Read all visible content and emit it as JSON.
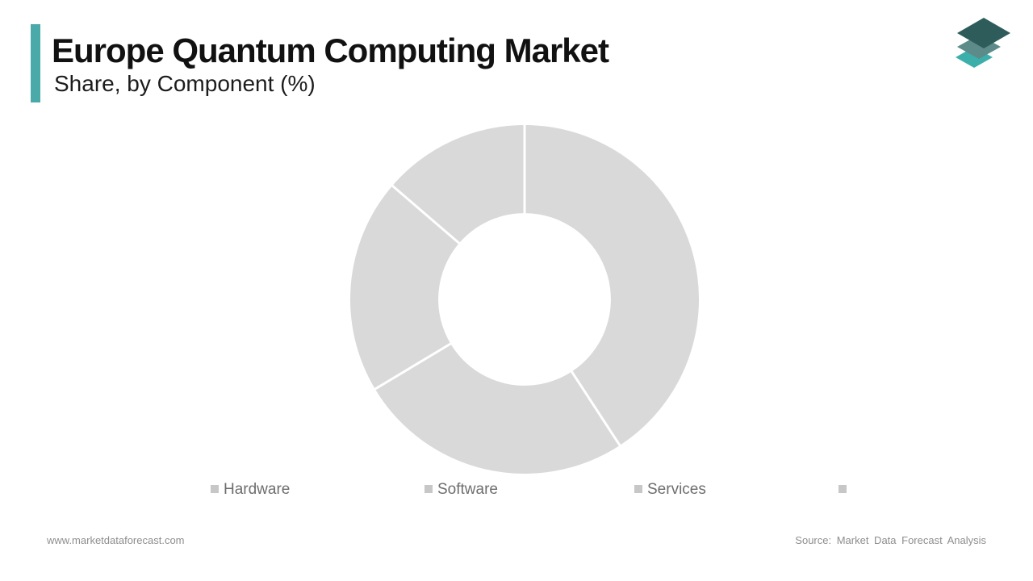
{
  "header": {
    "title": "Europe Quantum Computing Market",
    "subtitle": "Share, by Component (%)",
    "accent_color": "#4AA9A9",
    "title_color": "#111111"
  },
  "logo": {
    "name": "market-data-forecast-layers-logo",
    "layer_colors": [
      "#2E5C5B",
      "#5C8B89",
      "#3DAFAB"
    ]
  },
  "chart_data": {
    "type": "pie",
    "subtype": "donut",
    "title": "Europe Quantum Computing Market Share, by Component (%)",
    "labels": [
      "Hardware",
      "Software",
      "Services",
      ""
    ],
    "values": [
      40.8,
      25.6,
      19.9,
      13.7
    ],
    "unit": "%",
    "values_estimated_from_arc_angles": true,
    "start_angle_deg": 0,
    "direction": "clockwise",
    "inner_radius_ratio": 0.495,
    "segment_color": "#D9D9D9",
    "divider_color": "#FFFFFF",
    "data_labels_visible": false,
    "legend_position": "bottom"
  },
  "legend": {
    "marker_color": "#C7C7C7",
    "text_color": "#6E6E6E"
  },
  "footer": {
    "website": "www.marketdataforecast.com",
    "source": "Source: Market Data Forecast Analysis",
    "text_color": "#8E8E8E"
  }
}
